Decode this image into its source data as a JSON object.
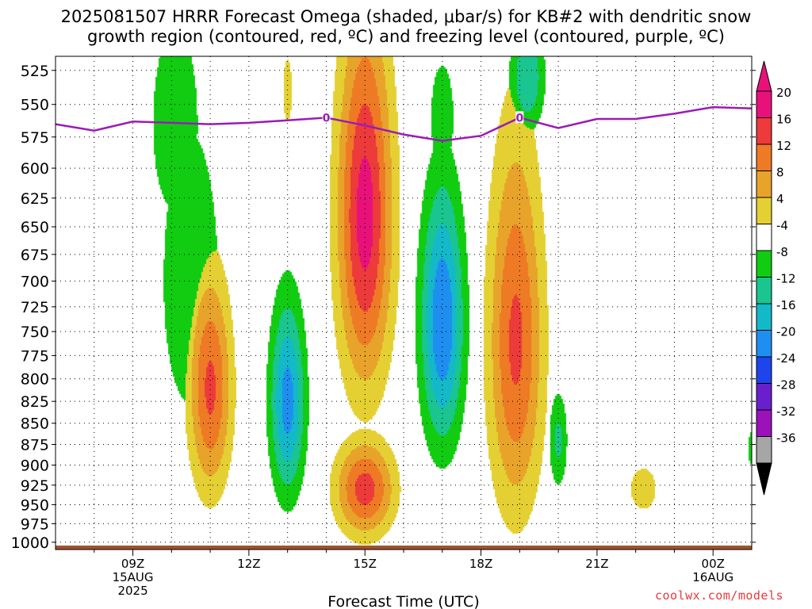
{
  "title": {
    "line1": "2025081507 HRRR Forecast Omega (shaded, μbar/s) for KB#2 with dendritic snow",
    "line2": "growth region (contoured, red, ºC) and freezing level (contoured, purple, ºC)"
  },
  "watermark": "coolwx.com/models",
  "chart_data": {
    "type": "contour",
    "xlabel": "Forecast Time (UTC)",
    "ylabel": "",
    "x_ticks": [
      {
        "hour": 9,
        "lines": [
          "09Z",
          "15AUG",
          "2025"
        ]
      },
      {
        "hour": 12,
        "lines": [
          "12Z"
        ]
      },
      {
        "hour": 15,
        "lines": [
          "15Z"
        ]
      },
      {
        "hour": 18,
        "lines": [
          "18Z"
        ]
      },
      {
        "hour": 21,
        "lines": [
          "21Z"
        ]
      },
      {
        "hour": 24,
        "lines": [
          "00Z",
          "16AUG"
        ]
      }
    ],
    "xlim": [
      7,
      25
    ],
    "y_ticks": [
      525,
      550,
      575,
      600,
      625,
      650,
      675,
      700,
      725,
      750,
      775,
      800,
      825,
      850,
      875,
      900,
      925,
      950,
      975,
      1000
    ],
    "ylim": [
      1010,
      515
    ],
    "y_scale": "log",
    "grid": true,
    "colorbar": {
      "labels": [
        "20",
        "16",
        "12",
        "8",
        "4",
        "-4",
        "-8",
        "-12",
        "-16",
        "-20",
        "-24",
        "-28",
        "-32",
        "-36"
      ],
      "colors": [
        "#e8117a",
        "#ed3a3a",
        "#ee7a25",
        "#e8a32a",
        "#e4d033",
        "#ffffff",
        "#11cc11",
        "#1ac58f",
        "#14b9c9",
        "#1e8ff0",
        "#1e44ee",
        "#6a1fcc",
        "#9a12b8",
        "#a6a6a6"
      ],
      "top_color": "#e8117a",
      "bottom_color": "#000000"
    },
    "freezing_level": {
      "color": "#9b1ab9",
      "label": "0",
      "points": [
        [
          7.0,
          565
        ],
        [
          8.0,
          570
        ],
        [
          9.0,
          563
        ],
        [
          10.0,
          564
        ],
        [
          11.0,
          565
        ],
        [
          12.0,
          564
        ],
        [
          13.0,
          562
        ],
        [
          14.0,
          560
        ],
        [
          15.0,
          566
        ],
        [
          16.0,
          573
        ],
        [
          17.0,
          578
        ],
        [
          18.0,
          574
        ],
        [
          19.0,
          560
        ],
        [
          20.0,
          568
        ],
        [
          21.0,
          561
        ],
        [
          22.0,
          561
        ],
        [
          23.0,
          557
        ],
        [
          24.0,
          552
        ],
        [
          25.0,
          553
        ]
      ],
      "label_points": [
        [
          14.0,
          560
        ],
        [
          19.0,
          560
        ]
      ]
    },
    "omega_cells": [
      {
        "xc": 10.5,
        "pc": 700,
        "wx": 1.1,
        "wp": 200,
        "max": -6
      },
      {
        "xc": 10.1,
        "pc": 565,
        "wx": 0.9,
        "wp": 110,
        "max": -6
      },
      {
        "xc": 11.0,
        "pc": 810,
        "wx": 0.55,
        "wp": 120,
        "max": 17
      },
      {
        "xc": 13.0,
        "pc": 825,
        "wx": 0.45,
        "wp": 110,
        "max": -18
      },
      {
        "xc": 15.0,
        "pc": 640,
        "wx": 0.7,
        "wp": 160,
        "max": 22
      },
      {
        "xc": 13.0,
        "pc": 540,
        "wx": 0.18,
        "wp": 35,
        "max": 6
      },
      {
        "xc": 15.0,
        "pc": 930,
        "wx": 0.75,
        "wp": 60,
        "max": 18
      },
      {
        "xc": 17.0,
        "pc": 740,
        "wx": 0.55,
        "wp": 130,
        "max": -20
      },
      {
        "xc": 17.0,
        "pc": 560,
        "wx": 0.45,
        "wp": 60,
        "max": -6
      },
      {
        "xc": 18.9,
        "pc": 760,
        "wx": 0.7,
        "wp": 190,
        "max": 17
      },
      {
        "xc": 19.2,
        "pc": 530,
        "wx": 0.45,
        "wp": 40,
        "max": -12
      },
      {
        "xc": 20.0,
        "pc": 870,
        "wx": 0.25,
        "wp": 60,
        "max": -9
      },
      {
        "xc": 22.2,
        "pc": 930,
        "wx": 0.5,
        "wp": 40,
        "max": 6
      },
      {
        "xc": 25.0,
        "pc": 880,
        "wx": 0.15,
        "wp": 30,
        "max": -6
      }
    ]
  }
}
